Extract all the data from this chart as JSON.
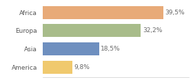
{
  "categories": [
    "America",
    "Asia",
    "Europa",
    "Africa"
  ],
  "values": [
    9.8,
    18.5,
    32.2,
    39.5
  ],
  "labels": [
    "9,8%",
    "18,5%",
    "32,2%",
    "39,5%"
  ],
  "bar_colors": [
    "#f0c96e",
    "#6e8fbf",
    "#a8bc8a",
    "#e8aa78"
  ],
  "background_color": "#ffffff",
  "xlim": [
    0,
    48
  ],
  "bar_height": 0.72,
  "label_fontsize": 6.5,
  "tick_fontsize": 6.5
}
